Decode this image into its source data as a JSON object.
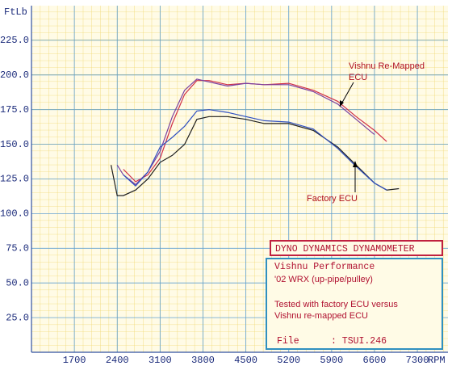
{
  "chart_data": {
    "type": "line",
    "y_label": "FtLb",
    "x_label": "RPM",
    "x": [
      2300,
      2400,
      2500,
      2700,
      2900,
      3100,
      3300,
      3500,
      3700,
      3900,
      4200,
      4500,
      4800,
      5200,
      5600,
      6000,
      6300,
      6600,
      6800,
      7000
    ],
    "series": [
      {
        "color": "#d0304a",
        "values": [
          null,
          null,
          132,
          123,
          128,
          140,
          165,
          186,
          196,
          196,
          193,
          194,
          193,
          194,
          189,
          181,
          170,
          160,
          152,
          null
        ]
      },
      {
        "color": "#7a40a0",
        "values": [
          null,
          135,
          128,
          121,
          130,
          145,
          170,
          189,
          197,
          195,
          192,
          194,
          193,
          193,
          188,
          179,
          168,
          157,
          null,
          null
        ]
      },
      {
        "color": "#202020",
        "values": [
          135,
          113,
          113,
          117,
          125,
          137,
          142,
          150,
          168,
          170,
          170,
          168,
          165,
          165,
          160,
          148,
          135,
          122,
          117,
          118
        ]
      },
      {
        "color": "#3050c0",
        "values": [
          null,
          null,
          128,
          120,
          130,
          148,
          155,
          163,
          174,
          175,
          173,
          170,
          167,
          166,
          161,
          147,
          134,
          122,
          117,
          null
        ]
      }
    ],
    "xlim": [
      1000,
      7800
    ],
    "ylim": [
      0,
      250
    ],
    "xticks": [
      1700,
      2400,
      3100,
      3800,
      4500,
      5200,
      5900,
      6600,
      7300
    ],
    "yticks": [
      {
        "value": 25,
        "label": "25.0"
      },
      {
        "value": 50,
        "label": "50.0"
      },
      {
        "value": 75,
        "label": "75.0"
      },
      {
        "value": 100,
        "label": "100.0"
      },
      {
        "value": 125,
        "label": "125.0"
      },
      {
        "value": 150,
        "label": "150.0"
      },
      {
        "value": 175,
        "label": "175.0"
      },
      {
        "value": 200,
        "label": "200.0"
      },
      {
        "value": 225,
        "label": "225.0"
      }
    ],
    "grid": true,
    "annotations": [
      "Vishnu Re-Mapped",
      "ECU",
      "Factory ECU"
    ],
    "info_box": {
      "header": "DYNO DYNAMICS DYNAMOMETER",
      "lines": [
        "Vishnu Performance",
        "'02 WRX (up-pipe/pulley)",
        "Tested with factory ECU versus",
        "Vishnu re-mapped ECU"
      ],
      "file_label": "File",
      "file_value": ": TSUI.246"
    }
  }
}
